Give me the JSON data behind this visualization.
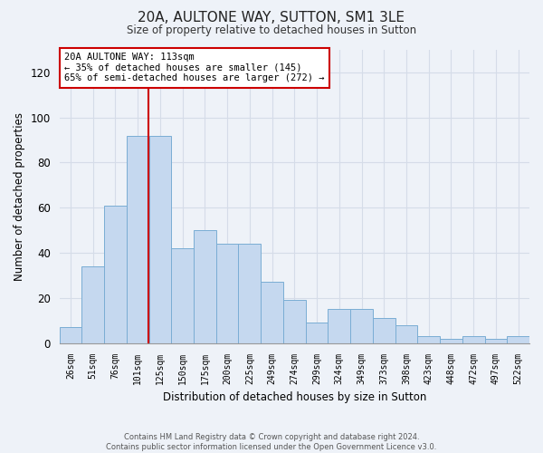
{
  "title1": "20A, AULTONE WAY, SUTTON, SM1 3LE",
  "title2": "Size of property relative to detached houses in Sutton",
  "xlabel": "Distribution of detached houses by size in Sutton",
  "ylabel": "Number of detached properties",
  "categories": [
    "26sqm",
    "51sqm",
    "76sqm",
    "101sqm",
    "125sqm",
    "150sqm",
    "175sqm",
    "200sqm",
    "225sqm",
    "249sqm",
    "274sqm",
    "299sqm",
    "324sqm",
    "349sqm",
    "373sqm",
    "398sqm",
    "423sqm",
    "448sqm",
    "472sqm",
    "497sqm",
    "522sqm"
  ],
  "values": [
    7,
    34,
    61,
    92,
    92,
    42,
    50,
    44,
    44,
    27,
    19,
    9,
    15,
    15,
    11,
    8,
    3,
    2,
    3,
    2,
    3
  ],
  "bar_color": "#c5d8ef",
  "bar_edge_color": "#7aadd4",
  "grid_color": "#d5dce8",
  "marker_line_color": "#cc0000",
  "annotation_text": "20A AULTONE WAY: 113sqm\n← 35% of detached houses are smaller (145)\n65% of semi-detached houses are larger (272) →",
  "annotation_box_color": "#ffffff",
  "annotation_box_edge": "#cc0000",
  "footer1": "Contains HM Land Registry data © Crown copyright and database right 2024.",
  "footer2": "Contains public sector information licensed under the Open Government Licence v3.0.",
  "ylim": [
    0,
    130
  ],
  "background_color": "#eef2f8"
}
